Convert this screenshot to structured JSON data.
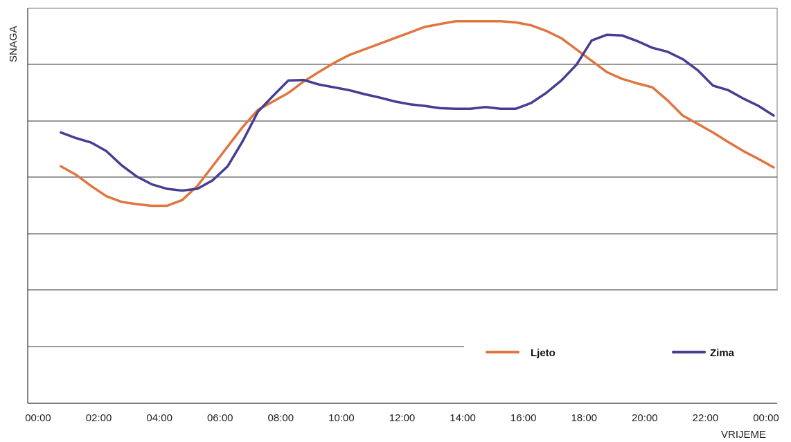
{
  "chart_data": {
    "type": "line",
    "title": "",
    "xlabel": "VRIJEME",
    "ylabel": "SNAGA",
    "x_tick_labels": [
      "00:00",
      "02:00",
      "04:00",
      "06:00",
      "08:00",
      "10:00",
      "12:00",
      "14:00",
      "16:00",
      "18:00",
      "20:00",
      "22:00",
      "00:00"
    ],
    "xlim": [
      0,
      24
    ],
    "ylim": [
      0,
      7
    ],
    "grid": "horizontal",
    "legend_position": "bottom-right",
    "series": [
      {
        "name": "Ljeto",
        "color": "#e07540",
        "points": [
          [
            0.75,
            4.2
          ],
          [
            1.25,
            4.05
          ],
          [
            1.75,
            3.85
          ],
          [
            2.25,
            3.67
          ],
          [
            2.75,
            3.57
          ],
          [
            3.25,
            3.53
          ],
          [
            3.75,
            3.5
          ],
          [
            4.25,
            3.5
          ],
          [
            4.75,
            3.6
          ],
          [
            5.25,
            3.85
          ],
          [
            5.75,
            4.2
          ],
          [
            6.25,
            4.55
          ],
          [
            6.75,
            4.9
          ],
          [
            7.25,
            5.2
          ],
          [
            7.75,
            5.35
          ],
          [
            8.25,
            5.5
          ],
          [
            8.75,
            5.7
          ],
          [
            9.25,
            5.87
          ],
          [
            9.75,
            6.03
          ],
          [
            10.25,
            6.17
          ],
          [
            10.75,
            6.27
          ],
          [
            11.25,
            6.37
          ],
          [
            11.75,
            6.47
          ],
          [
            12.25,
            6.57
          ],
          [
            12.75,
            6.67
          ],
          [
            13.25,
            6.72
          ],
          [
            13.75,
            6.77
          ],
          [
            14.25,
            6.77
          ],
          [
            14.75,
            6.77
          ],
          [
            15.25,
            6.77
          ],
          [
            15.75,
            6.75
          ],
          [
            16.25,
            6.7
          ],
          [
            16.75,
            6.6
          ],
          [
            17.25,
            6.47
          ],
          [
            17.75,
            6.27
          ],
          [
            18.25,
            6.07
          ],
          [
            18.75,
            5.87
          ],
          [
            19.25,
            5.75
          ],
          [
            19.75,
            5.67
          ],
          [
            20.25,
            5.6
          ],
          [
            20.75,
            5.37
          ],
          [
            21.25,
            5.1
          ],
          [
            21.75,
            4.95
          ],
          [
            22.25,
            4.8
          ],
          [
            22.75,
            4.63
          ],
          [
            23.25,
            4.47
          ],
          [
            23.75,
            4.33
          ],
          [
            24.25,
            4.18
          ]
        ]
      },
      {
        "name": "Zima",
        "color": "#453e92",
        "points": [
          [
            0.75,
            4.8
          ],
          [
            1.25,
            4.7
          ],
          [
            1.75,
            4.62
          ],
          [
            2.25,
            4.47
          ],
          [
            2.75,
            4.22
          ],
          [
            3.25,
            4.02
          ],
          [
            3.75,
            3.88
          ],
          [
            4.25,
            3.8
          ],
          [
            4.75,
            3.77
          ],
          [
            5.25,
            3.8
          ],
          [
            5.75,
            3.95
          ],
          [
            6.25,
            4.2
          ],
          [
            6.75,
            4.65
          ],
          [
            7.25,
            5.17
          ],
          [
            7.75,
            5.45
          ],
          [
            8.25,
            5.72
          ],
          [
            8.75,
            5.73
          ],
          [
            9.25,
            5.65
          ],
          [
            9.75,
            5.6
          ],
          [
            10.25,
            5.55
          ],
          [
            10.75,
            5.48
          ],
          [
            11.25,
            5.42
          ],
          [
            11.75,
            5.35
          ],
          [
            12.25,
            5.3
          ],
          [
            12.75,
            5.27
          ],
          [
            13.25,
            5.23
          ],
          [
            13.75,
            5.22
          ],
          [
            14.25,
            5.22
          ],
          [
            14.75,
            5.25
          ],
          [
            15.25,
            5.22
          ],
          [
            15.75,
            5.22
          ],
          [
            16.25,
            5.32
          ],
          [
            16.75,
            5.5
          ],
          [
            17.25,
            5.72
          ],
          [
            17.75,
            6.0
          ],
          [
            18.25,
            6.43
          ],
          [
            18.75,
            6.53
          ],
          [
            19.25,
            6.52
          ],
          [
            19.75,
            6.42
          ],
          [
            20.25,
            6.3
          ],
          [
            20.75,
            6.23
          ],
          [
            21.25,
            6.1
          ],
          [
            21.75,
            5.9
          ],
          [
            22.25,
            5.63
          ],
          [
            22.75,
            5.55
          ],
          [
            23.25,
            5.4
          ],
          [
            23.75,
            5.27
          ],
          [
            24.25,
            5.1
          ]
        ]
      }
    ]
  }
}
